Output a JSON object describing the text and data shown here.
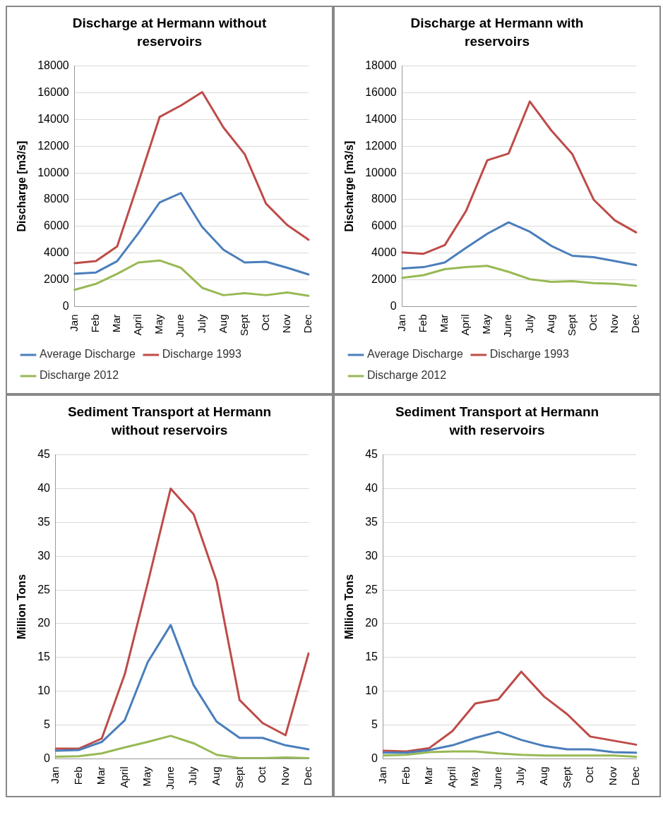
{
  "chart_data": [
    {
      "type": "line",
      "title": "Discharge at Hermann without reservoirs",
      "ylabel": "Discharge [m3/s]",
      "categories": [
        "Jan",
        "Feb",
        "Mar",
        "April",
        "May",
        "June",
        "July",
        "Aug",
        "Sept",
        "Oct",
        "Nov",
        "Dec"
      ],
      "ylim": [
        0,
        18000
      ],
      "yticks": [
        0,
        2000,
        4000,
        6000,
        8000,
        10000,
        12000,
        14000,
        16000,
        18000
      ],
      "grid": "y",
      "legend": "bottom",
      "marker": "none",
      "line_style": "solid",
      "series": [
        {
          "name": "Average Discharge",
          "color": "#4a7ebb",
          "values": [
            2450,
            2550,
            3400,
            5500,
            7800,
            8500,
            5950,
            4250,
            3300,
            3350,
            2900,
            2400
          ]
        },
        {
          "name": "Discharge 1993",
          "color": "#be4b48",
          "values": [
            3250,
            3400,
            4500,
            9300,
            14200,
            15050,
            16050,
            13400,
            11400,
            7700,
            6100,
            5000
          ]
        },
        {
          "name": "Discharge 2012",
          "color": "#98b954",
          "values": [
            1250,
            1700,
            2450,
            3300,
            3450,
            2900,
            1400,
            850,
            1000,
            850,
            1050,
            800
          ]
        }
      ]
    },
    {
      "type": "line",
      "title": "Discharge at Hermann with reservoirs",
      "ylabel": "Discharge [m3/s]",
      "categories": [
        "Jan",
        "Feb",
        "Mar",
        "April",
        "May",
        "June",
        "July",
        "Aug",
        "Sept",
        "Oct",
        "Nov",
        "Dec"
      ],
      "ylim": [
        0,
        18000
      ],
      "yticks": [
        0,
        2000,
        4000,
        6000,
        8000,
        10000,
        12000,
        14000,
        16000,
        18000
      ],
      "grid": "y",
      "legend": "bottom",
      "marker": "none",
      "line_style": "solid",
      "series": [
        {
          "name": "Average Discharge",
          "color": "#4a7ebb",
          "values": [
            2850,
            2950,
            3300,
            4400,
            5450,
            6300,
            5600,
            4550,
            3800,
            3700,
            3400,
            3100
          ]
        },
        {
          "name": "Discharge 1993",
          "color": "#be4b48",
          "values": [
            4050,
            3950,
            4600,
            7150,
            10950,
            11450,
            15350,
            13200,
            11400,
            8000,
            6450,
            5550
          ]
        },
        {
          "name": "Discharge 2012",
          "color": "#98b954",
          "values": [
            2150,
            2350,
            2800,
            2950,
            3050,
            2600,
            2050,
            1850,
            1900,
            1750,
            1700,
            1550
          ]
        }
      ]
    },
    {
      "type": "line",
      "title": "Sediment Transport at Hermann without reservoirs",
      "ylabel": "Million Tons",
      "categories": [
        "Jan",
        "Feb",
        "Mar",
        "April",
        "May",
        "June",
        "July",
        "Aug",
        "Sept",
        "Oct",
        "Nov",
        "Dec"
      ],
      "ylim": [
        0,
        45
      ],
      "yticks": [
        0,
        5,
        10,
        15,
        20,
        25,
        30,
        35,
        40,
        45
      ],
      "grid": "y",
      "marker": "none",
      "line_style": "solid",
      "series": [
        {
          "color": "#4a7ebb",
          "values": [
            1.2,
            1.3,
            2.5,
            5.7,
            14.3,
            19.8,
            10.9,
            5.5,
            3.1,
            3.1,
            2.0,
            1.4
          ]
        },
        {
          "color": "#be4b48",
          "values": [
            1.5,
            1.5,
            3.0,
            12.5,
            26.0,
            40.0,
            36.2,
            26.3,
            8.7,
            5.3,
            3.5,
            15.6
          ]
        },
        {
          "color": "#98b954",
          "values": [
            0.3,
            0.4,
            0.8,
            1.7,
            2.5,
            3.4,
            2.3,
            0.6,
            0.1,
            0.1,
            0.2,
            0.1
          ]
        }
      ]
    },
    {
      "type": "line",
      "title": "Sediment Transport at Hermann with reservoirs",
      "ylabel": "Million Tons",
      "categories": [
        "Jan",
        "Feb",
        "Mar",
        "April",
        "May",
        "June",
        "July",
        "Aug",
        "Sept",
        "Oct",
        "Nov",
        "Dec"
      ],
      "ylim": [
        0,
        45
      ],
      "yticks": [
        0,
        5,
        10,
        15,
        20,
        25,
        30,
        35,
        40,
        45
      ],
      "grid": "y",
      "marker": "none",
      "line_style": "solid",
      "series": [
        {
          "color": "#4a7ebb",
          "values": [
            0.9,
            0.9,
            1.3,
            2.0,
            3.1,
            4.0,
            2.8,
            1.9,
            1.4,
            1.4,
            1.0,
            0.9
          ]
        },
        {
          "color": "#be4b48",
          "values": [
            1.2,
            1.1,
            1.6,
            4.1,
            8.2,
            8.8,
            12.9,
            9.2,
            6.6,
            3.3,
            2.7,
            2.1
          ]
        },
        {
          "color": "#98b954",
          "values": [
            0.5,
            0.6,
            1.0,
            1.1,
            1.1,
            0.8,
            0.6,
            0.5,
            0.5,
            0.5,
            0.5,
            0.3
          ]
        }
      ]
    }
  ]
}
